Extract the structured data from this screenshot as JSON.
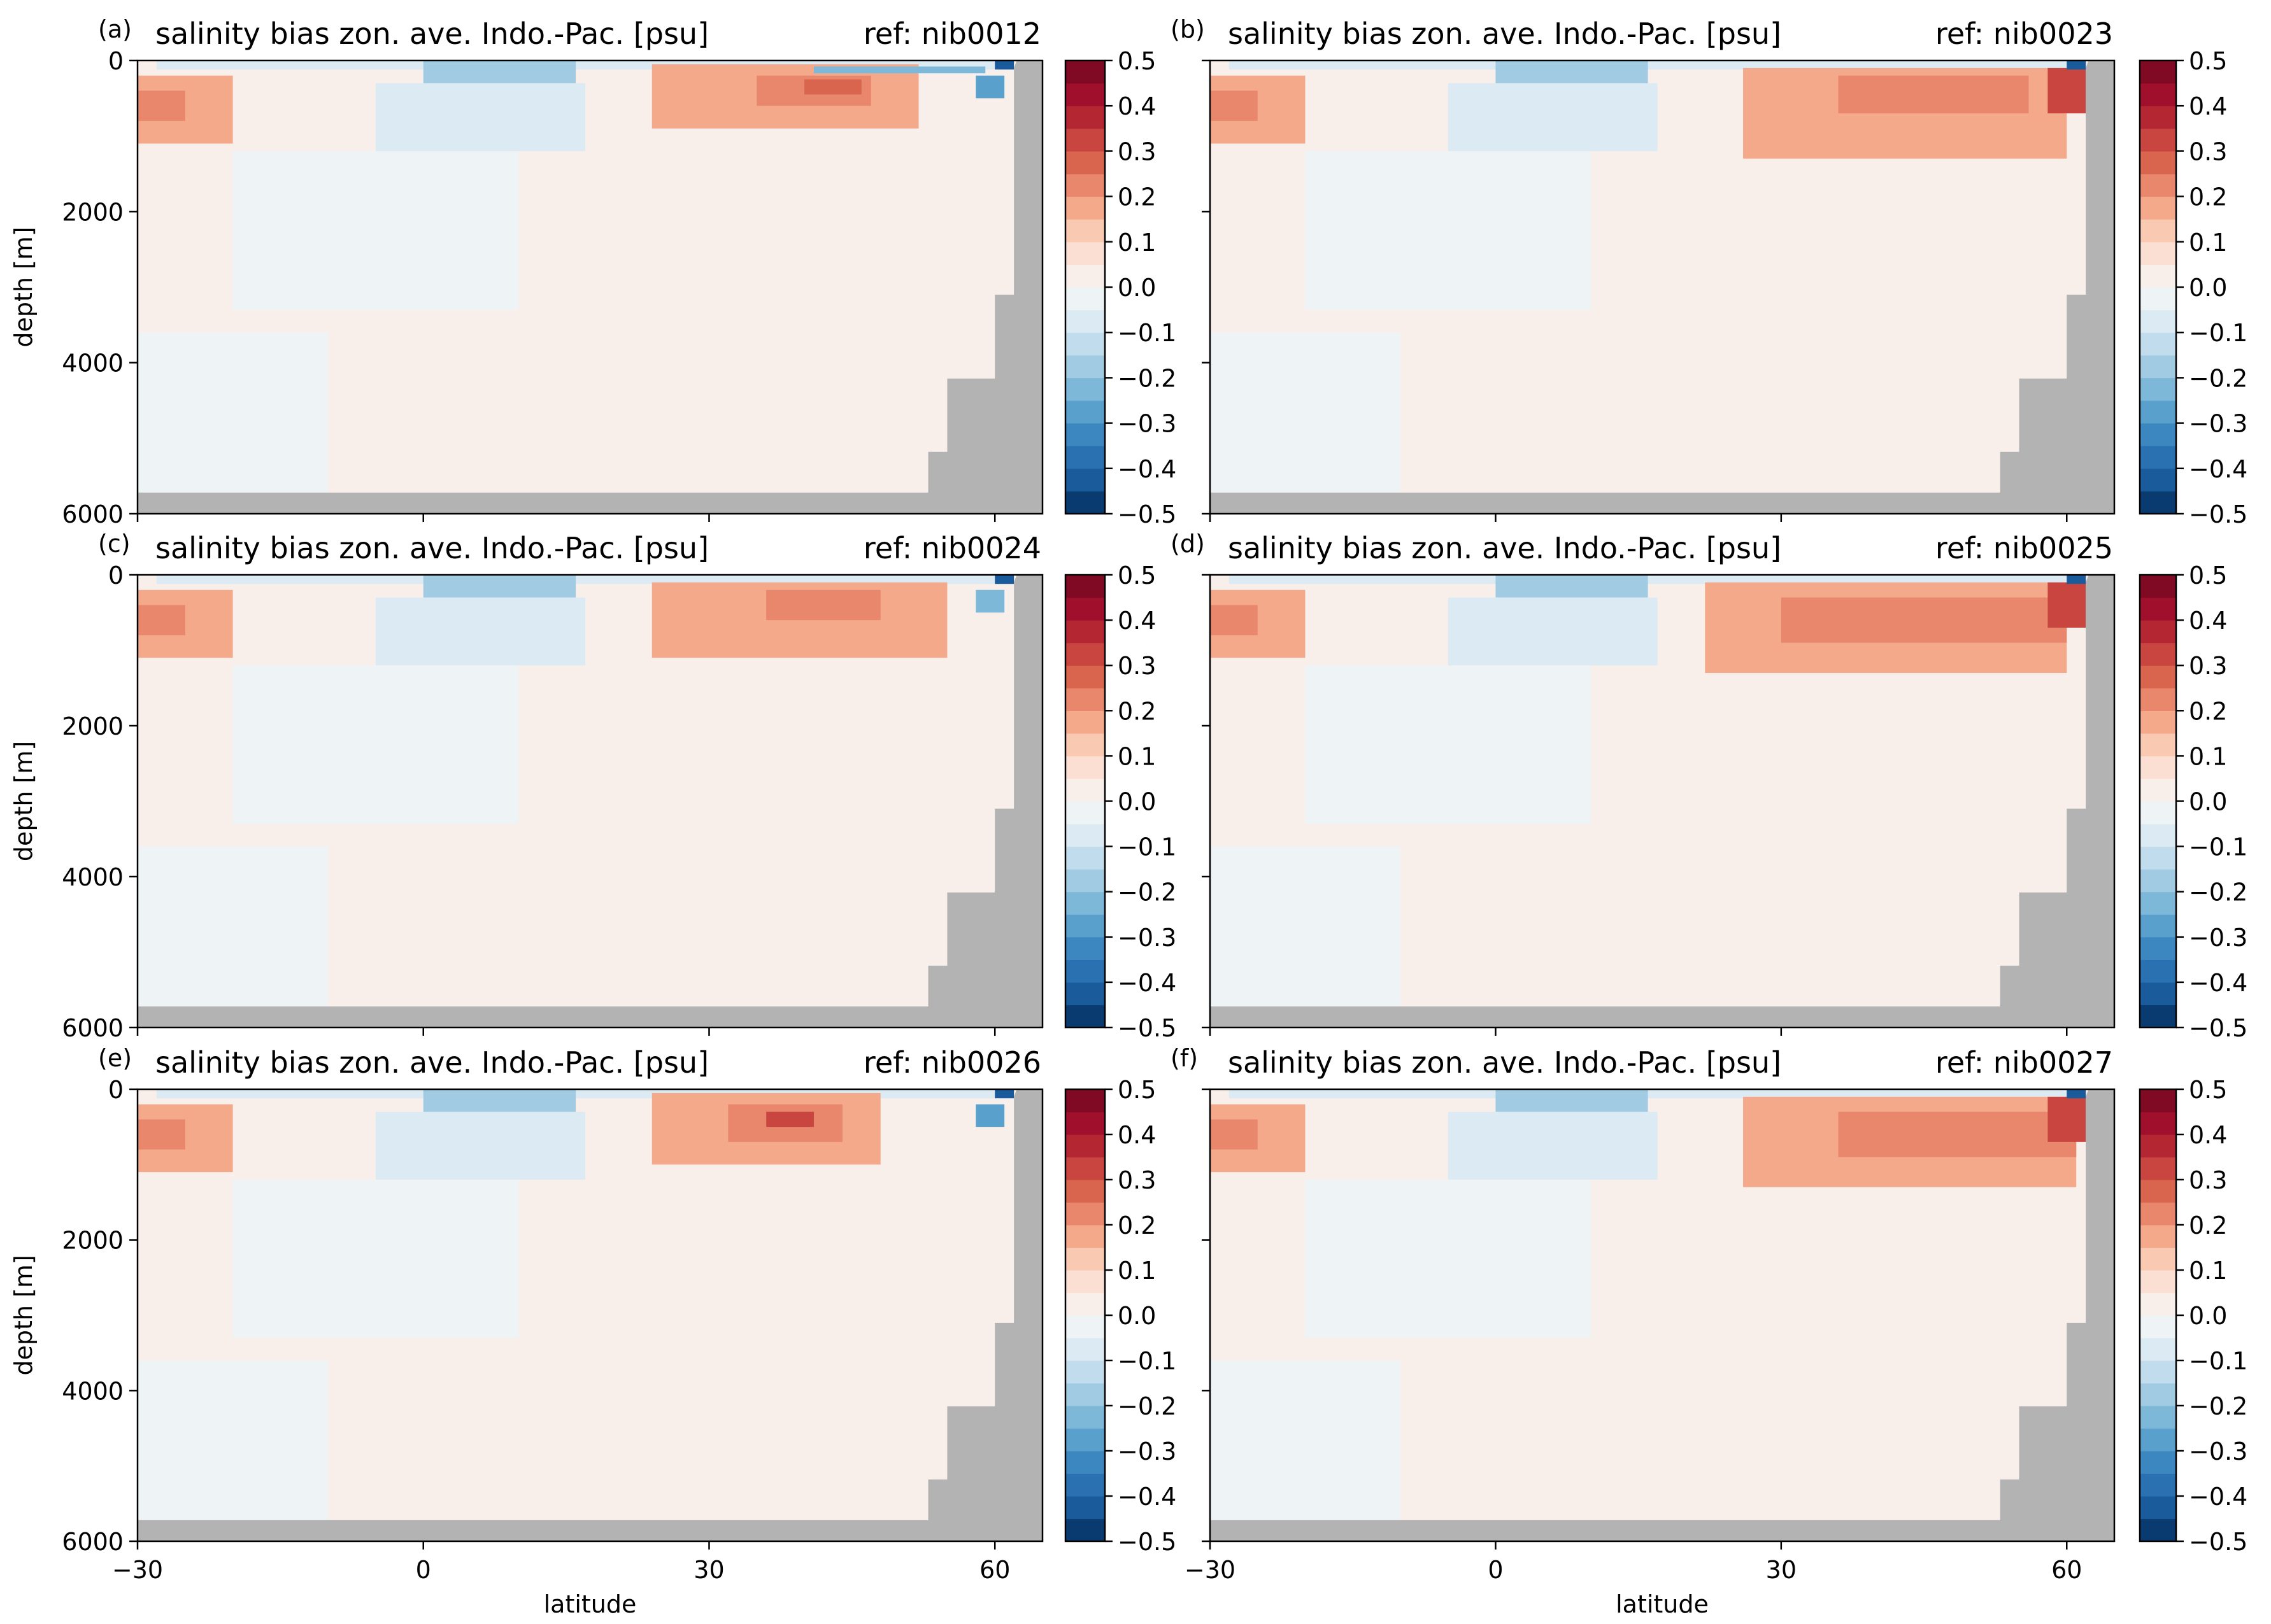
{
  "chart_data": {
    "type": "heatmap",
    "colormap": "RdBu_r",
    "colorbar": {
      "levels": [
        -0.5,
        -0.45,
        -0.4,
        -0.35,
        -0.3,
        -0.25,
        -0.2,
        -0.15,
        -0.1,
        -0.05,
        0.0,
        0.05,
        0.1,
        0.15,
        0.2,
        0.25,
        0.3,
        0.35,
        0.4,
        0.45,
        0.5
      ],
      "tick_labels": [
        "−0.5",
        "−0.4",
        "−0.3",
        "−0.2",
        "−0.1",
        "0.0",
        "0.1",
        "0.2",
        "0.3",
        "0.4",
        "0.5"
      ],
      "colors": [
        "#0a3b70",
        "#1a5b9c",
        "#2a71b2",
        "#3c87bf",
        "#5aa0cc",
        "#7db8d9",
        "#a0cbe2",
        "#c1dded",
        "#dbeaf3",
        "#eef3f6",
        "#f8efeb",
        "#fbdfd2",
        "#f9c9b1",
        "#f4a98a",
        "#e8876c",
        "#d9654f",
        "#c94640",
        "#b42732",
        "#a0102c",
        "#800a24"
      ]
    },
    "xlabel": "latitude",
    "ylabel": "depth [m]",
    "xlim": [
      -30,
      65
    ],
    "ylim": [
      6000,
      0
    ],
    "x_ticks": [
      -30,
      0,
      30,
      60
    ],
    "x_tick_labels": [
      "−30",
      "0",
      "30",
      "60"
    ],
    "y_ticks": [
      0,
      2000,
      4000,
      6000
    ],
    "y_tick_labels": [
      "0",
      "2000",
      "4000",
      "6000"
    ],
    "land_color": "#b3b3b3",
    "land_profile": [
      {
        "lat": -30,
        "depth": 5720
      },
      {
        "lat": 53,
        "depth": 5720
      },
      {
        "lat": 53,
        "depth": 5180
      },
      {
        "lat": 55,
        "depth": 5180
      },
      {
        "lat": 55,
        "depth": 4210
      },
      {
        "lat": 60,
        "depth": 4210
      },
      {
        "lat": 60,
        "depth": 3100
      },
      {
        "lat": 62,
        "depth": 3100
      },
      {
        "lat": 62,
        "depth": 100
      },
      {
        "lat": 62.3,
        "depth": 0
      },
      {
        "lat": 65,
        "depth": 0
      }
    ],
    "panels": [
      {
        "letter": "(a)",
        "title": "salinity bias zon. ave. Indo.-Pac. [psu]",
        "ref": "ref: nib0012",
        "features": [
          {
            "lat": [
              -30,
              65
            ],
            "depth": [
              0,
              6000
            ],
            "value": 0.03
          },
          {
            "lat": [
              -20,
              10
            ],
            "depth": [
              1200,
              3300
            ],
            "value": -0.03
          },
          {
            "lat": [
              -30,
              -10
            ],
            "depth": [
              3600,
              5720
            ],
            "value": -0.03
          },
          {
            "lat": [
              -5,
              17
            ],
            "depth": [
              300,
              1200
            ],
            "value": -0.08
          },
          {
            "lat": [
              -28,
              62
            ],
            "depth": [
              0,
              120
            ],
            "value": -0.08
          },
          {
            "lat": [
              -30,
              -20
            ],
            "depth": [
              200,
              1100
            ],
            "value": 0.15
          },
          {
            "lat": [
              -30,
              -25
            ],
            "depth": [
              400,
              800
            ],
            "value": 0.22
          },
          {
            "lat": [
              24,
              52
            ],
            "depth": [
              50,
              900
            ],
            "value": 0.15
          },
          {
            "lat": [
              35,
              47
            ],
            "depth": [
              200,
              600
            ],
            "value": 0.22
          },
          {
            "lat": [
              40,
              46
            ],
            "depth": [
              250,
              450
            ],
            "value": 0.28
          },
          {
            "lat": [
              0,
              16
            ],
            "depth": [
              0,
              300
            ],
            "value": -0.18
          },
          {
            "lat": [
              41,
              59
            ],
            "depth": [
              80,
              170
            ],
            "value": -0.22
          },
          {
            "lat": [
              58,
              61
            ],
            "depth": [
              200,
              500
            ],
            "value": -0.3
          },
          {
            "lat": [
              60,
              62
            ],
            "depth": [
              0,
              120
            ],
            "value": -0.43
          }
        ]
      },
      {
        "letter": "(b)",
        "title": "salinity bias zon. ave. Indo.-Pac. [psu]",
        "ref": "ref: nib0023",
        "features": [
          {
            "lat": [
              -30,
              65
            ],
            "depth": [
              0,
              6000
            ],
            "value": 0.03
          },
          {
            "lat": [
              -20,
              10
            ],
            "depth": [
              1200,
              3300
            ],
            "value": -0.03
          },
          {
            "lat": [
              -30,
              -10
            ],
            "depth": [
              3600,
              5720
            ],
            "value": -0.03
          },
          {
            "lat": [
              -5,
              17
            ],
            "depth": [
              300,
              1200
            ],
            "value": -0.08
          },
          {
            "lat": [
              -28,
              62
            ],
            "depth": [
              0,
              120
            ],
            "value": -0.08
          },
          {
            "lat": [
              -30,
              -20
            ],
            "depth": [
              200,
              1100
            ],
            "value": 0.15
          },
          {
            "lat": [
              -30,
              -25
            ],
            "depth": [
              400,
              800
            ],
            "value": 0.22
          },
          {
            "lat": [
              26,
              60
            ],
            "depth": [
              100,
              1300
            ],
            "value": 0.15
          },
          {
            "lat": [
              36,
              56
            ],
            "depth": [
              200,
              700
            ],
            "value": 0.2
          },
          {
            "lat": [
              0,
              16
            ],
            "depth": [
              0,
              300
            ],
            "value": -0.18
          },
          {
            "lat": [
              58,
              62
            ],
            "depth": [
              100,
              700
            ],
            "value": 0.3
          },
          {
            "lat": [
              60,
              62
            ],
            "depth": [
              0,
              120
            ],
            "value": -0.43
          }
        ]
      },
      {
        "letter": "(c)",
        "title": "salinity bias zon. ave. Indo.-Pac. [psu]",
        "ref": "ref: nib0024",
        "features": [
          {
            "lat": [
              -30,
              65
            ],
            "depth": [
              0,
              6000
            ],
            "value": 0.03
          },
          {
            "lat": [
              -20,
              10
            ],
            "depth": [
              1200,
              3300
            ],
            "value": -0.03
          },
          {
            "lat": [
              -30,
              -10
            ],
            "depth": [
              3600,
              5720
            ],
            "value": -0.03
          },
          {
            "lat": [
              -5,
              17
            ],
            "depth": [
              300,
              1200
            ],
            "value": -0.08
          },
          {
            "lat": [
              -28,
              62
            ],
            "depth": [
              0,
              120
            ],
            "value": -0.08
          },
          {
            "lat": [
              -30,
              -20
            ],
            "depth": [
              200,
              1100
            ],
            "value": 0.15
          },
          {
            "lat": [
              -30,
              -25
            ],
            "depth": [
              400,
              800
            ],
            "value": 0.22
          },
          {
            "lat": [
              24,
              55
            ],
            "depth": [
              100,
              1100
            ],
            "value": 0.15
          },
          {
            "lat": [
              36,
              48
            ],
            "depth": [
              200,
              600
            ],
            "value": 0.22
          },
          {
            "lat": [
              0,
              16
            ],
            "depth": [
              0,
              300
            ],
            "value": -0.18
          },
          {
            "lat": [
              58,
              61
            ],
            "depth": [
              200,
              500
            ],
            "value": -0.25
          },
          {
            "lat": [
              60,
              62
            ],
            "depth": [
              0,
              120
            ],
            "value": -0.43
          }
        ]
      },
      {
        "letter": "(d)",
        "title": "salinity bias zon. ave. Indo.-Pac. [psu]",
        "ref": "ref: nib0025",
        "features": [
          {
            "lat": [
              -30,
              65
            ],
            "depth": [
              0,
              6000
            ],
            "value": 0.03
          },
          {
            "lat": [
              -20,
              10
            ],
            "depth": [
              1200,
              3300
            ],
            "value": -0.03
          },
          {
            "lat": [
              -30,
              -10
            ],
            "depth": [
              3600,
              5720
            ],
            "value": -0.03
          },
          {
            "lat": [
              -5,
              17
            ],
            "depth": [
              300,
              1200
            ],
            "value": -0.08
          },
          {
            "lat": [
              -28,
              62
            ],
            "depth": [
              0,
              120
            ],
            "value": -0.08
          },
          {
            "lat": [
              -30,
              -20
            ],
            "depth": [
              200,
              1100
            ],
            "value": 0.15
          },
          {
            "lat": [
              -30,
              -25
            ],
            "depth": [
              400,
              800
            ],
            "value": 0.22
          },
          {
            "lat": [
              22,
              60
            ],
            "depth": [
              100,
              1300
            ],
            "value": 0.15
          },
          {
            "lat": [
              30,
              60
            ],
            "depth": [
              300,
              900
            ],
            "value": 0.22
          },
          {
            "lat": [
              0,
              16
            ],
            "depth": [
              0,
              300
            ],
            "value": -0.18
          },
          {
            "lat": [
              58,
              62
            ],
            "depth": [
              100,
              700
            ],
            "value": 0.33
          },
          {
            "lat": [
              60,
              62
            ],
            "depth": [
              0,
              120
            ],
            "value": -0.43
          }
        ]
      },
      {
        "letter": "(e)",
        "title": "salinity bias zon. ave. Indo.-Pac. [psu]",
        "ref": "ref: nib0026",
        "features": [
          {
            "lat": [
              -30,
              65
            ],
            "depth": [
              0,
              6000
            ],
            "value": 0.03
          },
          {
            "lat": [
              -20,
              10
            ],
            "depth": [
              1200,
              3300
            ],
            "value": -0.03
          },
          {
            "lat": [
              -30,
              -10
            ],
            "depth": [
              3600,
              5720
            ],
            "value": -0.03
          },
          {
            "lat": [
              -5,
              17
            ],
            "depth": [
              300,
              1200
            ],
            "value": -0.08
          },
          {
            "lat": [
              -28,
              62
            ],
            "depth": [
              0,
              120
            ],
            "value": -0.08
          },
          {
            "lat": [
              -30,
              -20
            ],
            "depth": [
              200,
              1100
            ],
            "value": 0.15
          },
          {
            "lat": [
              -30,
              -25
            ],
            "depth": [
              400,
              800
            ],
            "value": 0.22
          },
          {
            "lat": [
              24,
              48
            ],
            "depth": [
              50,
              1000
            ],
            "value": 0.15
          },
          {
            "lat": [
              32,
              44
            ],
            "depth": [
              200,
              700
            ],
            "value": 0.22
          },
          {
            "lat": [
              36,
              41
            ],
            "depth": [
              300,
              500
            ],
            "value": 0.3
          },
          {
            "lat": [
              0,
              16
            ],
            "depth": [
              0,
              300
            ],
            "value": -0.18
          },
          {
            "lat": [
              58,
              61
            ],
            "depth": [
              200,
              500
            ],
            "value": -0.3
          },
          {
            "lat": [
              60,
              62
            ],
            "depth": [
              0,
              120
            ],
            "value": -0.43
          }
        ]
      },
      {
        "letter": "(f)",
        "title": "salinity bias zon. ave. Indo.-Pac. [psu]",
        "ref": "ref: nib0027",
        "features": [
          {
            "lat": [
              -30,
              65
            ],
            "depth": [
              0,
              6000
            ],
            "value": 0.03
          },
          {
            "lat": [
              -20,
              10
            ],
            "depth": [
              1200,
              3300
            ],
            "value": -0.03
          },
          {
            "lat": [
              -30,
              -10
            ],
            "depth": [
              3600,
              5720
            ],
            "value": -0.03
          },
          {
            "lat": [
              -5,
              17
            ],
            "depth": [
              300,
              1200
            ],
            "value": -0.08
          },
          {
            "lat": [
              -28,
              62
            ],
            "depth": [
              0,
              120
            ],
            "value": -0.08
          },
          {
            "lat": [
              -30,
              -20
            ],
            "depth": [
              200,
              1100
            ],
            "value": 0.15
          },
          {
            "lat": [
              -30,
              -25
            ],
            "depth": [
              400,
              800
            ],
            "value": 0.22
          },
          {
            "lat": [
              26,
              61
            ],
            "depth": [
              100,
              1300
            ],
            "value": 0.15
          },
          {
            "lat": [
              36,
              61
            ],
            "depth": [
              300,
              900
            ],
            "value": 0.22
          },
          {
            "lat": [
              0,
              16
            ],
            "depth": [
              0,
              300
            ],
            "value": -0.18
          },
          {
            "lat": [
              58,
              62
            ],
            "depth": [
              100,
              700
            ],
            "value": 0.3
          },
          {
            "lat": [
              60,
              62
            ],
            "depth": [
              0,
              120
            ],
            "value": -0.43
          }
        ]
      }
    ]
  }
}
